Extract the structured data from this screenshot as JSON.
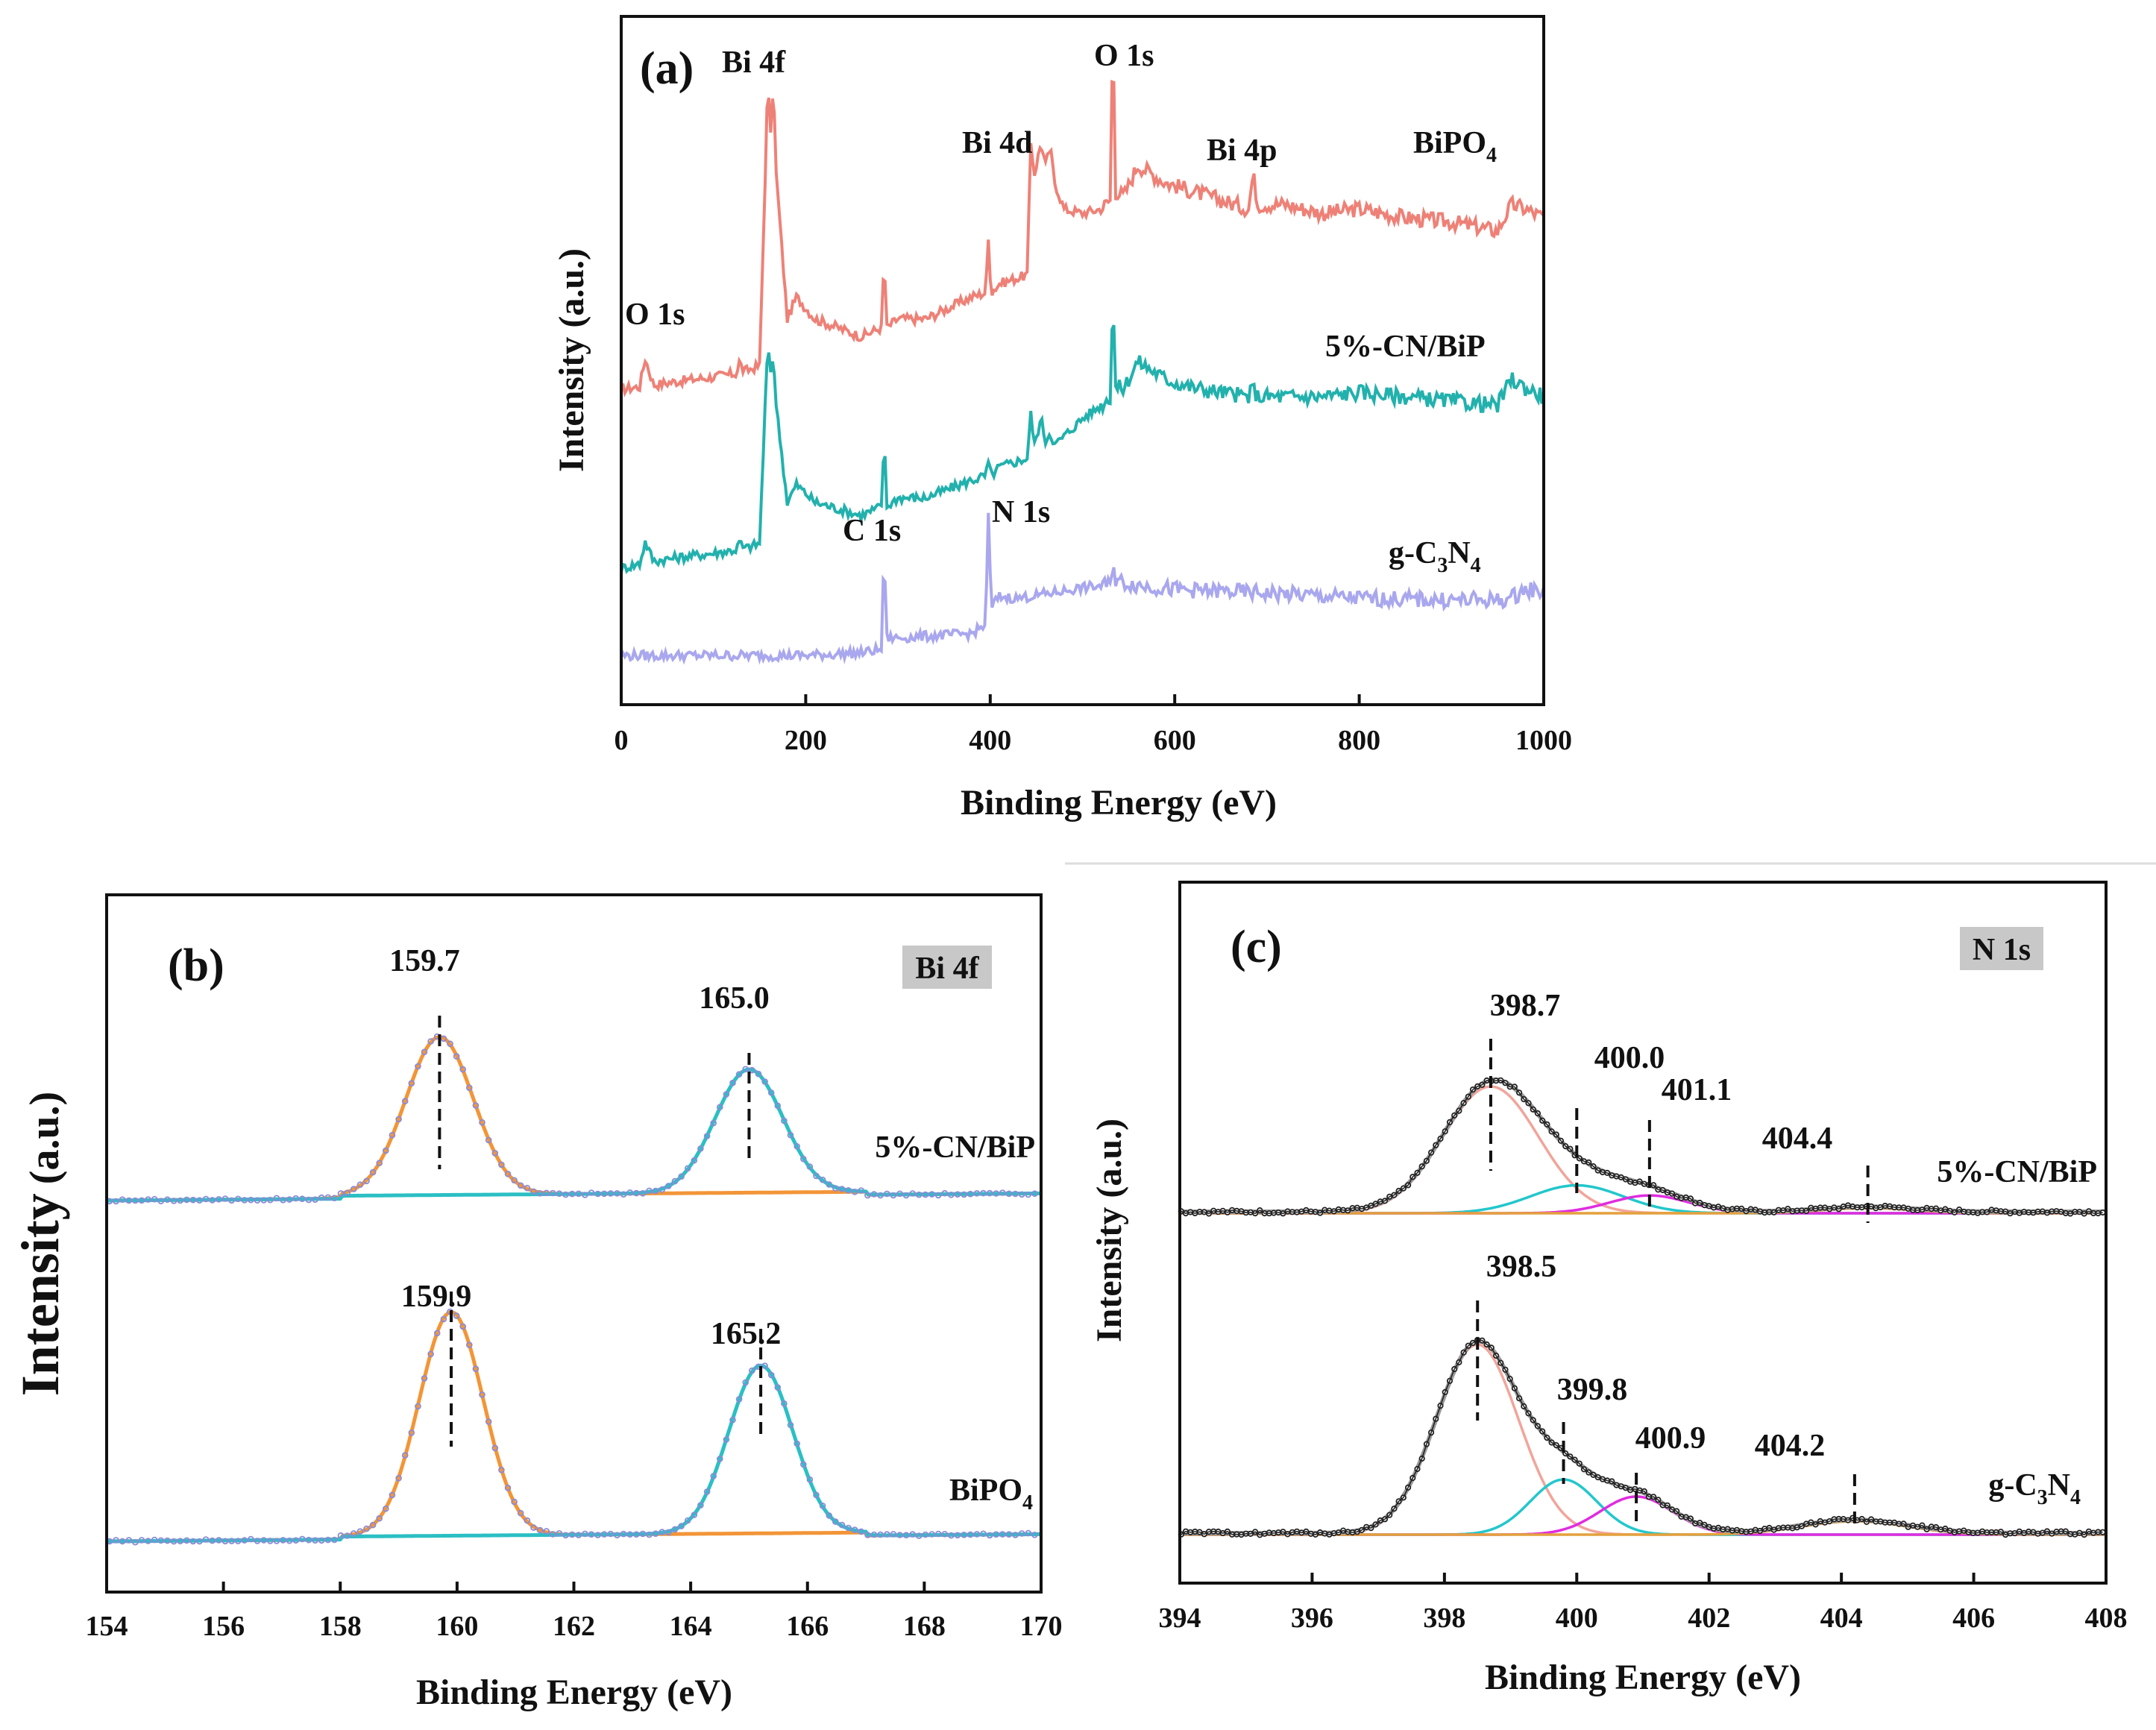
{
  "chart_data": [
    {
      "panel": "(a)",
      "type": "line",
      "xlabel": "Binding Energy (eV)",
      "ylabel": "Intensity (a.u.)",
      "xlim": [
        0,
        1000
      ],
      "xticks": [
        "0",
        "200",
        "400",
        "600",
        "800",
        "1000"
      ],
      "series": [
        {
          "name": "BiPO4",
          "label_main": "BiPO",
          "label_sub": "4",
          "label_after": "",
          "color": "#ee8177",
          "x": [
            0,
            20,
            26,
            35,
            60,
            100,
            125,
            128,
            133,
            150,
            157,
            159,
            161,
            163,
            165,
            168,
            180,
            190,
            210,
            260,
            282,
            285,
            288,
            300,
            330,
            380,
            395,
            398,
            401,
            410,
            440,
            444,
            448,
            455,
            460,
            465,
            470,
            480,
            500,
            520,
            530,
            533,
            536,
            545,
            560,
            590,
            620,
            650,
            680,
            685,
            690,
            720,
            760,
            800,
            850,
            900,
            950,
            965,
            980,
            1000
          ],
          "y": [
            5,
            8,
            40,
            10,
            14,
            19,
            23,
            36,
            25,
            32,
            280,
            365,
            300,
            300,
            360,
            250,
            85,
            110,
            85,
            65,
            75,
            155,
            75,
            85,
            85,
            110,
            115,
            175,
            115,
            125,
            135,
            285,
            250,
            285,
            260,
            280,
            240,
            210,
            205,
            210,
            220,
            420,
            230,
            225,
            260,
            240,
            230,
            220,
            210,
            250,
            215,
            215,
            205,
            210,
            200,
            195,
            185,
            215,
            210,
            200
          ]
        },
        {
          "name": "5%-CN/BiP",
          "label_main": "5%-CN/BiP",
          "label_sub": "",
          "label_after": "",
          "color": "#22b1ad",
          "x": [
            0,
            20,
            26,
            35,
            60,
            100,
            125,
            128,
            133,
            150,
            157,
            159,
            161,
            163,
            165,
            168,
            180,
            190,
            210,
            260,
            282,
            285,
            288,
            300,
            330,
            380,
            395,
            398,
            401,
            410,
            440,
            444,
            448,
            455,
            460,
            465,
            470,
            480,
            500,
            520,
            530,
            533,
            536,
            545,
            560,
            590,
            620,
            650,
            680,
            685,
            690,
            720,
            760,
            800,
            850,
            900,
            950,
            965,
            980,
            1000
          ],
          "y": [
            0,
            5,
            30,
            8,
            12,
            17,
            21,
            30,
            22,
            28,
            210,
            255,
            225,
            225,
            245,
            185,
            75,
            95,
            75,
            60,
            70,
            150,
            70,
            80,
            80,
            100,
            105,
            120,
            105,
            115,
            125,
            175,
            140,
            170,
            145,
            155,
            140,
            150,
            170,
            185,
            195,
            315,
            205,
            205,
            235,
            215,
            205,
            200,
            195,
            205,
            195,
            195,
            195,
            200,
            195,
            190,
            185,
            215,
            205,
            195
          ]
        },
        {
          "name": "g-C3N4",
          "label_main": "g-C",
          "label_sub": "3",
          "label_after": "N",
          "label_sub2": "4",
          "color": "#a9a7ee",
          "x": [
            0,
            100,
            200,
            260,
            282,
            285,
            288,
            300,
            380,
            395,
            398,
            401,
            410,
            430,
            460,
            500,
            530,
            533,
            536,
            560,
            600,
            650,
            700,
            800,
            900,
            960,
            980,
            1000
          ],
          "y": [
            5,
            5,
            5,
            8,
            12,
            125,
            25,
            25,
            30,
            40,
            165,
            60,
            72,
            70,
            75,
            82,
            85,
            115,
            90,
            85,
            80,
            78,
            76,
            70,
            68,
            68,
            80,
            78
          ]
        }
      ],
      "annotations": [
        "(a)",
        "Bi 4f",
        "O 1s",
        "Bi 4d",
        "Bi 4p",
        "O 1s",
        "C 1s",
        "N 1s"
      ]
    },
    {
      "panel": "(b)",
      "type": "line",
      "xlabel": "Binding Energy (eV)",
      "ylabel": "Intensity",
      "ylabel_suffix": "(a.u.)",
      "xlim": [
        154,
        170
      ],
      "xticks": [
        "154",
        "156",
        "158",
        "160",
        "162",
        "164",
        "166",
        "168",
        "170"
      ],
      "region_label": "Bi 4f",
      "series": [
        {
          "name": "5%-CN/BiP",
          "label_main": "5%-CN/BiP",
          "label_sub": "",
          "peaks": [
            159.7,
            165.0
          ],
          "peak_labels": [
            "159.7",
            "165.0"
          ],
          "heights": [
            1.0,
            0.78
          ],
          "widths": [
            0.58,
            0.58
          ]
        },
        {
          "name": "BiPO4",
          "label_main": "BiPO",
          "label_sub": "4",
          "peaks": [
            159.9,
            165.2
          ],
          "peak_labels": [
            "159.9",
            "165.2"
          ],
          "heights": [
            1.0,
            0.75
          ],
          "widths": [
            0.55,
            0.55
          ]
        }
      ],
      "colors": {
        "fit": "#f29538",
        "envelope": "#2bbfc4",
        "data": "#8a8ad8"
      }
    },
    {
      "panel": "(c)",
      "type": "line",
      "xlabel": "Binding Energy (eV)",
      "ylabel": "Intensity (a.u.)",
      "xlim": [
        394,
        408
      ],
      "xticks": [
        "394",
        "396",
        "398",
        "400",
        "402",
        "404",
        "406",
        "408"
      ],
      "region_label": "N 1s",
      "series": [
        {
          "name": "5%-CN/BiP",
          "label_main": "5%-CN/BiP",
          "label_sub": "",
          "peaks": [
            398.7,
            400.0,
            401.1,
            404.4
          ],
          "peak_labels": [
            "398.7",
            "400.0",
            "401.1",
            "404.4"
          ],
          "heights": [
            1.0,
            0.22,
            0.14,
            0.04
          ],
          "widths": [
            0.72,
            0.7,
            0.6,
            0.7
          ]
        },
        {
          "name": "g-C3N4",
          "label_main": "g-C",
          "label_sub": "3",
          "label_after": "N",
          "label_sub2": "4",
          "peaks": [
            398.5,
            399.8,
            400.9,
            404.2
          ],
          "peak_labels": [
            "398.5",
            "399.8",
            "400.9",
            "404.2"
          ],
          "heights": [
            1.0,
            0.29,
            0.2,
            0.07
          ],
          "widths": [
            0.62,
            0.5,
            0.55,
            0.8
          ]
        }
      ],
      "colors": {
        "c1": "#f2a49b",
        "c2": "#22c7cc",
        "c3": "#e02ce0",
        "c4": "#e4a13e",
        "envelope": "#9a9a9a",
        "data": "#222222"
      }
    }
  ]
}
